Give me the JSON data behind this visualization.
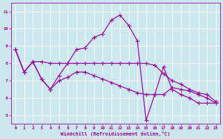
{
  "xlabel": "Windchill (Refroidissement éolien,°C)",
  "bg_color": "#cce8ee",
  "line_color": "#990099",
  "grid_color": "#ffffff",
  "spine_color": "#990099",
  "x_ticks": [
    0,
    1,
    2,
    3,
    4,
    5,
    6,
    7,
    8,
    9,
    10,
    11,
    12,
    13,
    14,
    15,
    16,
    17,
    18,
    19,
    20,
    21,
    22,
    23
  ],
  "y_ticks": [
    5,
    6,
    7,
    8,
    9,
    10,
    11
  ],
  "xlim": [
    -0.5,
    23.5
  ],
  "ylim": [
    4.5,
    11.5
  ],
  "s1": [
    8.8,
    7.5,
    8.1,
    7.1,
    6.5,
    7.3,
    8.0,
    8.8,
    8.9,
    9.5,
    9.7,
    10.5,
    10.8,
    10.2,
    9.3,
    4.7,
    6.2,
    7.8,
    6.5,
    6.2,
    6.0,
    5.7,
    5.7,
    5.7
  ],
  "s2": [
    8.8,
    7.5,
    8.1,
    8.1,
    8.0,
    8.0,
    8.0,
    8.0,
    8.0,
    8.0,
    8.0,
    8.0,
    8.0,
    8.0,
    8.0,
    8.0,
    7.9,
    7.4,
    7.0,
    6.8,
    6.5,
    6.3,
    6.2,
    5.8
  ],
  "s3": [
    8.8,
    7.5,
    8.1,
    7.1,
    6.5,
    7.0,
    7.2,
    7.5,
    7.5,
    7.3,
    7.1,
    6.9,
    6.7,
    6.5,
    6.3,
    6.2,
    6.2,
    6.2,
    6.6,
    6.5,
    6.4,
    6.2,
    6.0,
    5.7
  ]
}
